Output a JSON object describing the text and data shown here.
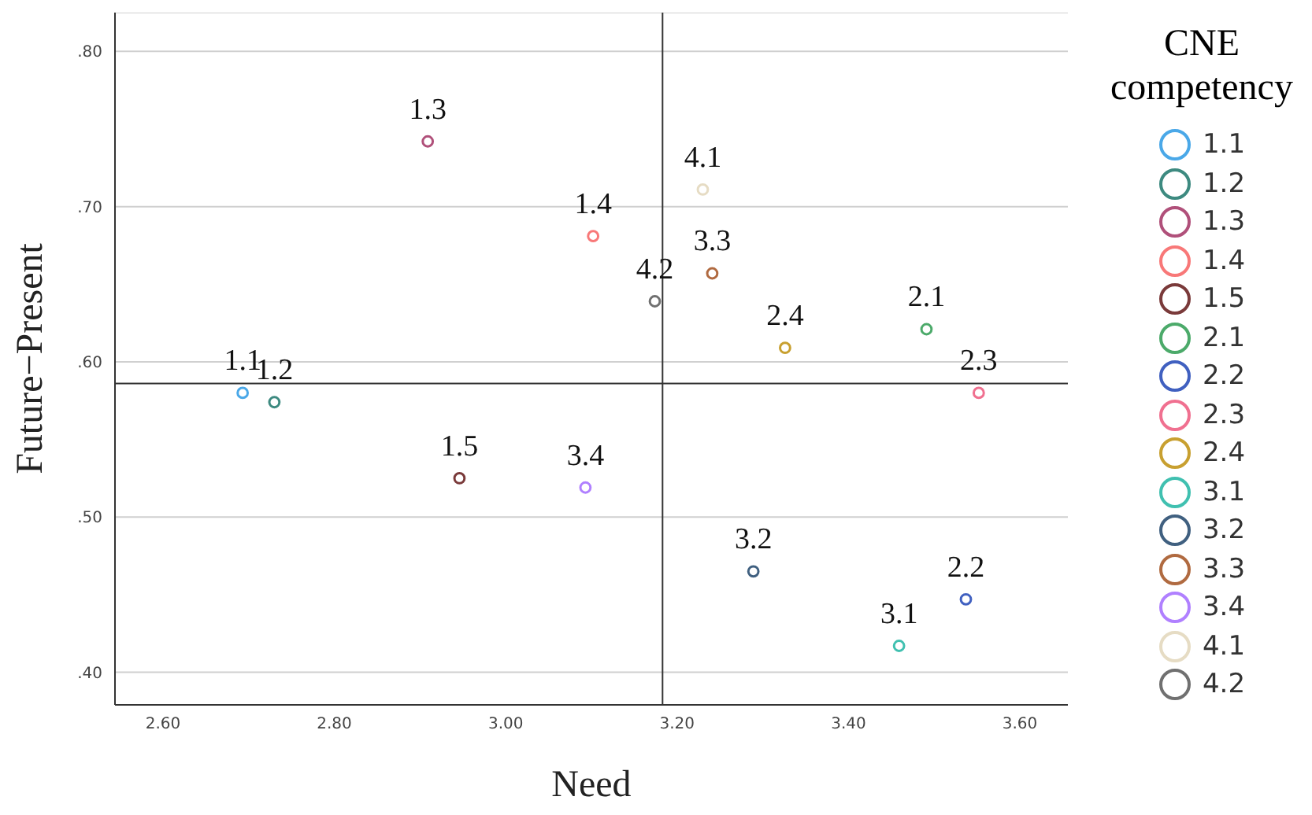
{
  "chart_data": {
    "type": "scatter",
    "xlabel": "Need",
    "ylabel": "Future−Present",
    "legend_title": "CNE competency",
    "xlim": [
      2.544,
      3.656
    ],
    "ylim": [
      0.379,
      0.825
    ],
    "xticks": [
      {
        "value": 2.6,
        "label": "2.60"
      },
      {
        "value": 2.8,
        "label": "2.80"
      },
      {
        "value": 3.0,
        "label": "3.00"
      },
      {
        "value": 3.2,
        "label": "3.20"
      },
      {
        "value": 3.4,
        "label": "3.40"
      },
      {
        "value": 3.6,
        "label": "3.60"
      }
    ],
    "yticks": [
      {
        "value": 0.4,
        "label": ".40"
      },
      {
        "value": 0.5,
        "label": ".50"
      },
      {
        "value": 0.6,
        "label": ".60"
      },
      {
        "value": 0.7,
        "label": ".70"
      },
      {
        "value": 0.8,
        "label": ".80"
      }
    ],
    "grid": "y",
    "legend": "right",
    "marker": "circle",
    "ref_lines": [
      {
        "axis": "x",
        "value": 3.183,
        "color": "#333333"
      },
      {
        "axis": "y",
        "value": 0.586,
        "color": "#333333"
      }
    ],
    "series": [
      {
        "name": "1.1",
        "color": "#4aa8e8",
        "x": [
          2.693
        ],
        "values": [
          0.58
        ]
      },
      {
        "name": "1.2",
        "color": "#3d8a80",
        "x": [
          2.73
        ],
        "values": [
          0.574
        ]
      },
      {
        "name": "1.3",
        "color": "#b0507a",
        "x": [
          2.909
        ],
        "values": [
          0.742
        ]
      },
      {
        "name": "1.4",
        "color": "#f87878",
        "x": [
          3.102
        ],
        "values": [
          0.681
        ]
      },
      {
        "name": "1.5",
        "color": "#7a3a3a",
        "x": [
          2.946
        ],
        "values": [
          0.525
        ]
      },
      {
        "name": "2.1",
        "color": "#4caa6a",
        "x": [
          3.491
        ],
        "values": [
          0.621
        ]
      },
      {
        "name": "2.2",
        "color": "#4060c0",
        "x": [
          3.537
        ],
        "values": [
          0.447
        ]
      },
      {
        "name": "2.3",
        "color": "#f07090",
        "x": [
          3.552
        ],
        "values": [
          0.58
        ]
      },
      {
        "name": "2.4",
        "color": "#c8a030",
        "x": [
          3.326
        ],
        "values": [
          0.609
        ]
      },
      {
        "name": "3.1",
        "color": "#40c0b0",
        "x": [
          3.459
        ],
        "values": [
          0.417
        ]
      },
      {
        "name": "3.2",
        "color": "#406080",
        "x": [
          3.289
        ],
        "values": [
          0.465
        ]
      },
      {
        "name": "3.3",
        "color": "#b06a40",
        "x": [
          3.241
        ],
        "values": [
          0.657
        ]
      },
      {
        "name": "3.4",
        "color": "#b080ff",
        "x": [
          3.093
        ],
        "values": [
          0.519
        ]
      },
      {
        "name": "4.1",
        "color": "#e6dcc4",
        "x": [
          3.23
        ],
        "values": [
          0.711
        ]
      },
      {
        "name": "4.2",
        "color": "#707070",
        "x": [
          3.174
        ],
        "values": [
          0.639
        ]
      }
    ]
  }
}
